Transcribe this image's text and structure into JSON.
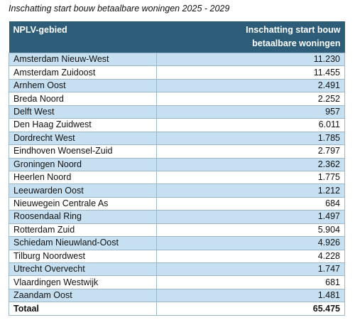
{
  "title": "Inschatting start bouw betaalbare woningen 2025 - 2029",
  "table": {
    "header": [
      "NPLV-gebied",
      "Inschatting start bouw betaalbare woningen"
    ],
    "rows": [
      [
        "Amsterdam Nieuw-West",
        "11.230"
      ],
      [
        "Amsterdam Zuidoost",
        "11.455"
      ],
      [
        "Arnhem Oost",
        "2.491"
      ],
      [
        "Breda Noord",
        "2.252"
      ],
      [
        "Delft West",
        "957"
      ],
      [
        "Den Haag Zuidwest",
        "6.011"
      ],
      [
        "Dordrecht West",
        "1.785"
      ],
      [
        "Eindhoven Woensel-Zuid",
        "2.797"
      ],
      [
        "Groningen Noord",
        "2.362"
      ],
      [
        "Heerlen Noord",
        "1.775"
      ],
      [
        "Leeuwarden Oost",
        "1.212"
      ],
      [
        "Nieuwegein Centrale As",
        "684"
      ],
      [
        "Roosendaal Ring",
        "1.497"
      ],
      [
        "Rotterdam Zuid",
        "5.904"
      ],
      [
        "Schiedam Nieuwland-Oost",
        "4.926"
      ],
      [
        "Tilburg Noordwest",
        "4.228"
      ],
      [
        "Utrecht Overvecht",
        "1.747"
      ],
      [
        "Vlaardingen Westwijk",
        "681"
      ],
      [
        "Zaandam Oost",
        "1.481"
      ]
    ],
    "total": [
      "Totaal",
      "65.475"
    ]
  }
}
